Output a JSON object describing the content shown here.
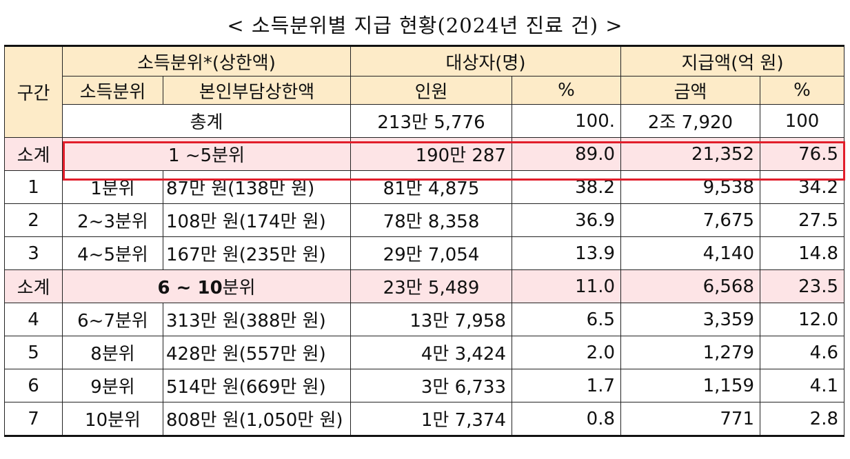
{
  "title": "< 소득분위별 지급 현황(2024년 진료 건) >",
  "headers": {
    "section": "구간",
    "income_group": "소득분위*(상한액)",
    "income_level": "소득분위",
    "cap": "본인부담상한액",
    "recipients": "대상자(명)",
    "people": "인원",
    "people_pct": "%",
    "payment": "지급액(억 원)",
    "amount": "금액",
    "amount_pct": "%"
  },
  "total": {
    "label": "총계",
    "people": "213만 5,776",
    "people_pct": "100.",
    "amount": "2조 7,920",
    "amount_pct": "100"
  },
  "subtotal1": {
    "section": "소계",
    "label": "1 ~5분위",
    "people": "190만 287",
    "people_pct": "89.0",
    "amount": "21,352",
    "amount_pct": "76.5"
  },
  "rows_a": [
    {
      "section": "1",
      "level": "1분위",
      "cap": "87만 원(138만 원)",
      "people": "81만 4,875",
      "people_pct": "38.2",
      "amount": "9,538",
      "amount_pct": "34.2"
    },
    {
      "section": "2",
      "level": "2~3분위",
      "cap": "108만 원(174만 원)",
      "people": "78만 8,358",
      "people_pct": "36.9",
      "amount": "7,675",
      "amount_pct": "27.5"
    },
    {
      "section": "3",
      "level": "4~5분위",
      "cap": "167만 원(235만 원)",
      "people": "29만 7,054",
      "people_pct": "13.9",
      "amount": "4,140",
      "amount_pct": "14.8"
    }
  ],
  "subtotal2": {
    "section": "소계",
    "label_num": "6 ~ 10",
    "label_suffix": "분위",
    "people": "23만 5,489",
    "people_pct": "11.0",
    "amount": "6,568",
    "amount_pct": "23.5"
  },
  "rows_b": [
    {
      "section": "4",
      "level": "6~7분위",
      "cap": "313만 원(388만 원)",
      "people": "13만 7,958",
      "people_pct": "6.5",
      "amount": "3,359",
      "amount_pct": "12.0"
    },
    {
      "section": "5",
      "level": "8분위",
      "cap": "428만 원(557만 원)",
      "people": "4만 3,424",
      "people_pct": "2.0",
      "amount": "1,279",
      "amount_pct": "4.6"
    },
    {
      "section": "6",
      "level": "9분위",
      "cap": "514만 원(669만 원)",
      "people": "3만 6,733",
      "people_pct": "1.7",
      "amount": "1,159",
      "amount_pct": "4.1"
    },
    {
      "section": "7",
      "level": "10분위",
      "cap": "808만 원(1,050만 원)",
      "people": "1만 7,374",
      "people_pct": "0.8",
      "amount": "771",
      "amount_pct": "2.8"
    }
  ],
  "colors": {
    "header_bg": "#fdebc8",
    "subtotal_bg": "#fde4e6",
    "highlight_border": "#e11d2a"
  }
}
